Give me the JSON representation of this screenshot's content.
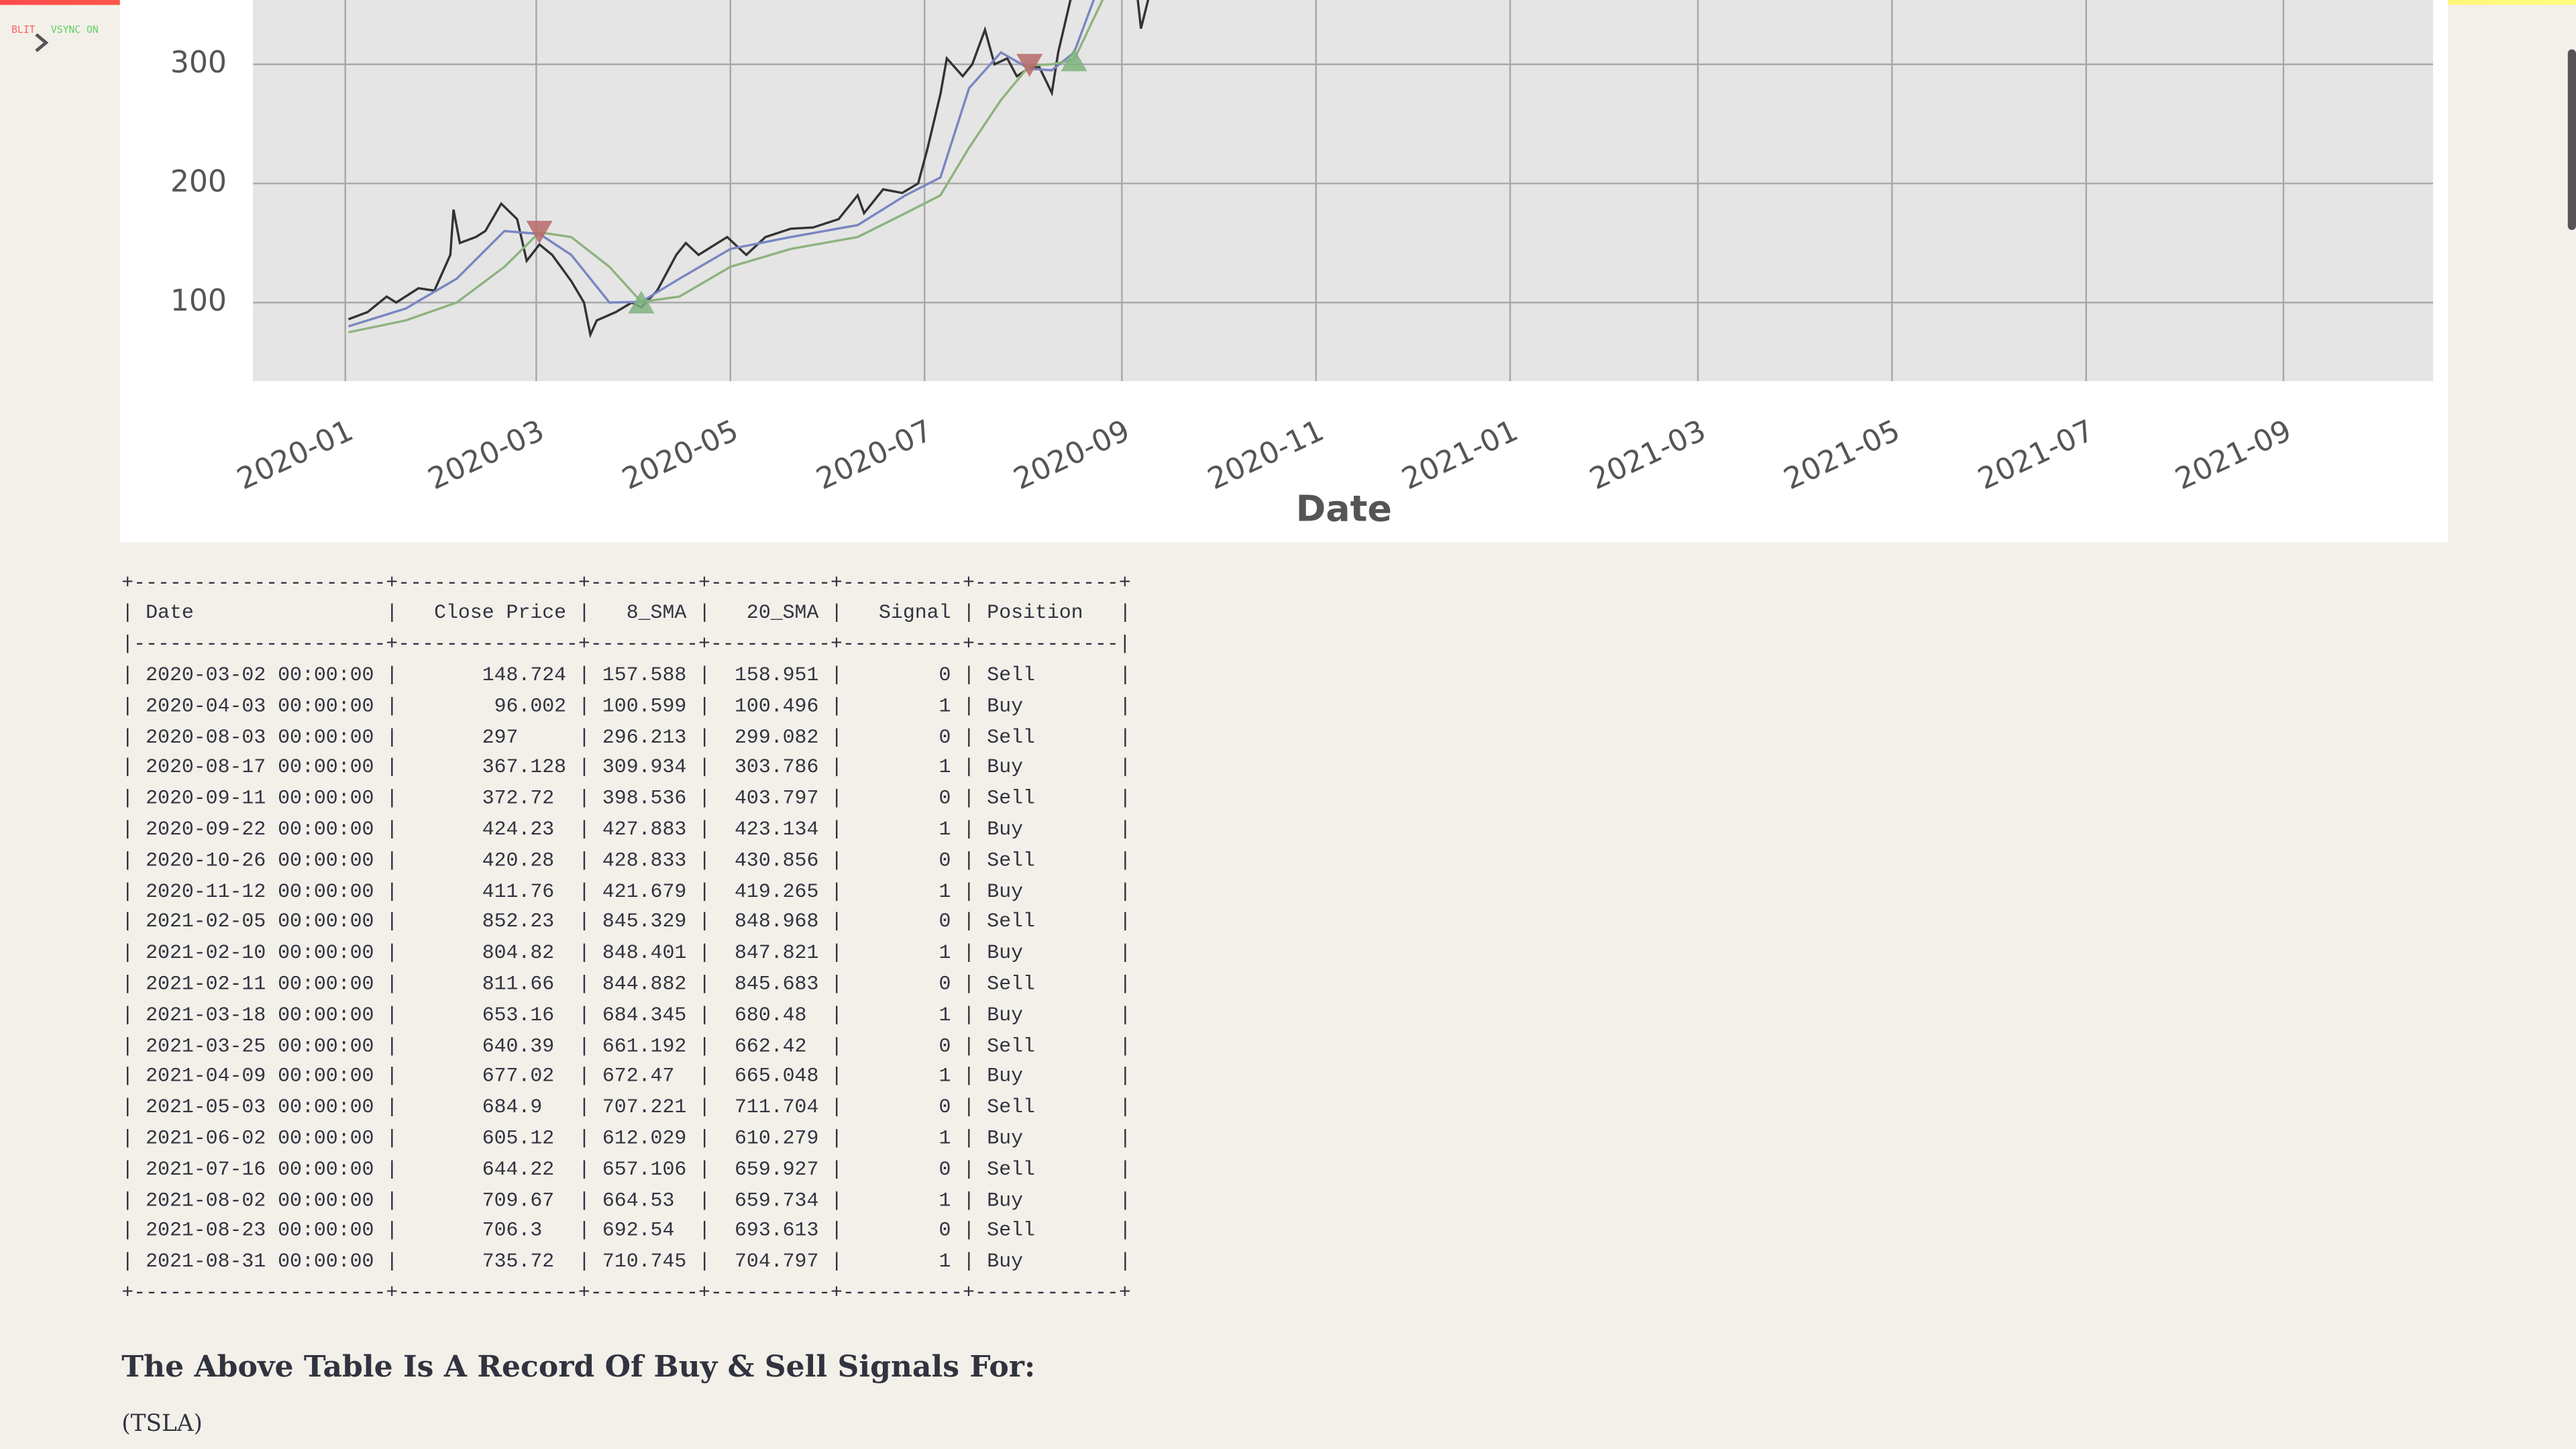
{
  "overlay": [
    "BLIT",
    "VSYNC ON"
  ],
  "chart_data": {
    "type": "line",
    "xlabel": "Date",
    "xlim": [
      "2019-12-03",
      "2021-10-18"
    ],
    "ylim": [
      34,
      354
    ],
    "xticks": [
      {
        "value": "2020-01-01",
        "label": "2020-01"
      },
      {
        "value": "2020-03-01",
        "label": "2020-03"
      },
      {
        "value": "2020-05-01",
        "label": "2020-05"
      },
      {
        "value": "2020-07-01",
        "label": "2020-07"
      },
      {
        "value": "2020-09-01",
        "label": "2020-09"
      },
      {
        "value": "2020-11-01",
        "label": "2020-11"
      },
      {
        "value": "2021-01-01",
        "label": "2021-01"
      },
      {
        "value": "2021-03-01",
        "label": "2021-03"
      },
      {
        "value": "2021-05-01",
        "label": "2021-05"
      },
      {
        "value": "2021-07-01",
        "label": "2021-07"
      },
      {
        "value": "2021-09-01",
        "label": "2021-09"
      }
    ],
    "yticks": [
      100,
      200,
      300
    ],
    "grid": true,
    "series": [
      {
        "color": "#333333",
        "x": [
          "2020-01-02",
          "2020-01-08",
          "2020-01-14",
          "2020-01-17",
          "2020-01-24",
          "2020-01-29",
          "2020-02-03",
          "2020-02-04",
          "2020-02-06",
          "2020-02-11",
          "2020-02-14",
          "2020-02-19",
          "2020-02-24",
          "2020-02-27",
          "2020-03-02",
          "2020-03-06",
          "2020-03-12",
          "2020-03-16",
          "2020-03-18",
          "2020-03-20",
          "2020-03-26",
          "2020-03-31",
          "2020-04-03",
          "2020-04-08",
          "2020-04-14",
          "2020-04-17",
          "2020-04-21",
          "2020-04-27",
          "2020-04-30",
          "2020-05-06",
          "2020-05-12",
          "2020-05-20",
          "2020-05-27",
          "2020-06-04",
          "2020-06-10",
          "2020-06-12",
          "2020-06-18",
          "2020-06-24",
          "2020-06-29",
          "2020-07-02",
          "2020-07-06",
          "2020-07-08",
          "2020-07-13",
          "2020-07-16",
          "2020-07-20",
          "2020-07-23",
          "2020-07-27",
          "2020-07-30",
          "2020-08-03",
          "2020-08-06",
          "2020-08-10",
          "2020-08-12",
          "2020-08-17",
          "2020-08-20",
          "2020-08-31",
          "2020-09-07",
          "2020-09-11"
        ],
        "values": [
          86,
          92,
          105,
          100,
          112,
          110,
          140,
          178,
          150,
          155,
          160,
          183,
          170,
          135,
          148.724,
          140,
          118,
          100,
          73,
          85,
          92,
          100,
          96.002,
          110,
          140,
          150,
          140,
          150,
          155,
          140,
          155,
          162,
          163,
          170,
          190,
          175,
          195,
          192,
          200,
          230,
          275,
          305,
          290,
          300,
          329,
          300,
          305,
          290,
          297,
          298,
          276,
          310,
          367.128,
          400,
          500,
          330,
          372.72
        ]
      },
      {
        "color": "#7a86c0",
        "x": [
          "2020-01-02",
          "2020-01-20",
          "2020-02-05",
          "2020-02-20",
          "2020-03-02",
          "2020-03-12",
          "2020-03-24",
          "2020-04-03",
          "2020-04-15",
          "2020-05-01",
          "2020-05-20",
          "2020-06-10",
          "2020-06-25",
          "2020-07-06",
          "2020-07-15",
          "2020-07-25",
          "2020-08-03",
          "2020-08-10",
          "2020-08-17",
          "2020-08-24"
        ],
        "values": [
          80,
          95,
          120,
          160,
          157.588,
          140,
          100,
          100.599,
          120,
          145,
          155,
          165,
          190,
          205,
          280,
          310,
          296.213,
          295,
          309.934,
          360
        ]
      },
      {
        "color": "#8fb27f",
        "x": [
          "2020-01-02",
          "2020-01-20",
          "2020-02-05",
          "2020-02-20",
          "2020-03-02",
          "2020-03-12",
          "2020-03-24",
          "2020-04-03",
          "2020-04-15",
          "2020-05-01",
          "2020-05-20",
          "2020-06-10",
          "2020-06-25",
          "2020-07-06",
          "2020-07-15",
          "2020-07-25",
          "2020-08-03",
          "2020-08-10",
          "2020-08-17",
          "2020-08-27"
        ],
        "values": [
          75,
          85,
          100,
          130,
          158.951,
          155,
          130,
          100.496,
          105,
          130,
          145,
          155,
          175,
          190,
          230,
          270,
          299.082,
          300,
          303.786,
          360
        ]
      },
      {
        "color": "#b86a6a",
        "marker": "v",
        "x": [
          "2020-03-02",
          "2020-08-03"
        ],
        "values": [
          158.951,
          299.082
        ]
      },
      {
        "color": "#7fb37f",
        "marker": "^",
        "x": [
          "2020-04-03",
          "2020-08-17"
        ],
        "values": [
          100.496,
          303.786
        ]
      }
    ]
  },
  "table": {
    "header": [
      "Date",
      "Close Price",
      "8_SMA",
      "20_SMA",
      "Signal",
      "Position"
    ],
    "rows": [
      [
        "2020-03-02 00:00:00",
        148.724,
        157.588,
        158.951,
        0,
        "Sell"
      ],
      [
        "2020-04-03 00:00:00",
        96.002,
        100.599,
        100.496,
        1,
        "Buy"
      ],
      [
        "2020-08-03 00:00:00",
        297,
        296.213,
        299.082,
        0,
        "Sell"
      ],
      [
        "2020-08-17 00:00:00",
        367.128,
        309.934,
        303.786,
        1,
        "Buy"
      ],
      [
        "2020-09-11 00:00:00",
        372.72,
        398.536,
        403.797,
        0,
        "Sell"
      ],
      [
        "2020-09-22 00:00:00",
        424.23,
        427.883,
        423.134,
        1,
        "Buy"
      ],
      [
        "2020-10-26 00:00:00",
        420.28,
        428.833,
        430.856,
        0,
        "Sell"
      ],
      [
        "2020-11-12 00:00:00",
        411.76,
        421.679,
        419.265,
        1,
        "Buy"
      ],
      [
        "2021-02-05 00:00:00",
        852.23,
        845.329,
        848.968,
        0,
        "Sell"
      ],
      [
        "2021-02-10 00:00:00",
        804.82,
        848.401,
        847.821,
        1,
        "Buy"
      ],
      [
        "2021-02-11 00:00:00",
        811.66,
        844.882,
        845.683,
        0,
        "Sell"
      ],
      [
        "2021-03-18 00:00:00",
        653.16,
        684.345,
        680.48,
        1,
        "Buy"
      ],
      [
        "2021-03-25 00:00:00",
        640.39,
        661.192,
        662.42,
        0,
        "Sell"
      ],
      [
        "2021-04-09 00:00:00",
        677.02,
        672.47,
        665.048,
        1,
        "Buy"
      ],
      [
        "2021-05-03 00:00:00",
        684.9,
        707.221,
        711.704,
        0,
        "Sell"
      ],
      [
        "2021-06-02 00:00:00",
        605.12,
        612.029,
        610.279,
        1,
        "Buy"
      ],
      [
        "2021-07-16 00:00:00",
        644.22,
        657.106,
        659.927,
        0,
        "Sell"
      ],
      [
        "2021-08-02 00:00:00",
        709.67,
        664.53,
        659.734,
        1,
        "Buy"
      ],
      [
        "2021-08-23 00:00:00",
        706.3,
        692.54,
        693.613,
        0,
        "Sell"
      ],
      [
        "2021-08-31 00:00:00",
        735.72,
        710.745,
        704.797,
        1,
        "Buy"
      ]
    ]
  },
  "heading": "The Above Table Is A Record Of Buy & Sell Signals For:",
  "ticker": "(TSLA)"
}
